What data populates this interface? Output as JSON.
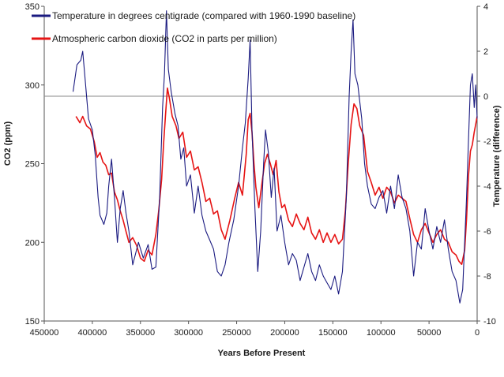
{
  "chart_data": {
    "type": "line",
    "xlabel": "Years Before Present",
    "ylabel_left": "CO2 (ppm)",
    "ylabel_right": "Temperature (difference)",
    "xlim": [
      450000,
      0
    ],
    "ylim_left": [
      150,
      350
    ],
    "ylim_right": [
      -10,
      4
    ],
    "x_ticks": [
      "450000",
      "400000",
      "350000",
      "300000",
      "250000",
      "200000",
      "150000",
      "100000",
      "50000",
      "0"
    ],
    "y_left_ticks": [
      "150",
      "200",
      "250",
      "300",
      "350"
    ],
    "y_right_ticks": [
      "-10",
      "-8",
      "-6",
      "-4",
      "-2",
      "0",
      "2",
      "4"
    ],
    "legend_position": "top-left",
    "grid": false,
    "reference_line_temperature": 0,
    "series": [
      {
        "name": "Temperature in degrees centigrade (compared with 1960-1990 baseline)",
        "axis": "right",
        "color": "#1a1a80",
        "points": [
          [
            420000,
            0.2
          ],
          [
            416000,
            1.4
          ],
          [
            412000,
            1.6
          ],
          [
            410000,
            2.0
          ],
          [
            407000,
            0.5
          ],
          [
            404000,
            -1.0
          ],
          [
            400000,
            -1.5
          ],
          [
            397000,
            -2.6
          ],
          [
            394000,
            -4.5
          ],
          [
            392000,
            -5.3
          ],
          [
            388000,
            -5.7
          ],
          [
            385000,
            -5.2
          ],
          [
            383000,
            -4.0
          ],
          [
            380000,
            -2.8
          ],
          [
            377000,
            -4.5
          ],
          [
            374000,
            -6.5
          ],
          [
            371000,
            -5.0
          ],
          [
            368000,
            -4.2
          ],
          [
            365000,
            -5.2
          ],
          [
            362000,
            -6.0
          ],
          [
            358000,
            -7.5
          ],
          [
            352000,
            -6.5
          ],
          [
            347000,
            -7.2
          ],
          [
            342000,
            -6.6
          ],
          [
            338000,
            -7.7
          ],
          [
            334000,
            -7.6
          ],
          [
            330000,
            -4.5
          ],
          [
            327000,
            -0.5
          ],
          [
            325000,
            1.0
          ],
          [
            323000,
            3.8
          ],
          [
            321000,
            1.2
          ],
          [
            318000,
            0.2
          ],
          [
            314000,
            -0.8
          ],
          [
            311000,
            -1.3
          ],
          [
            308000,
            -2.8
          ],
          [
            305000,
            -2.3
          ],
          [
            302000,
            -4.0
          ],
          [
            298000,
            -3.5
          ],
          [
            294000,
            -5.2
          ],
          [
            290000,
            -4.0
          ],
          [
            286000,
            -5.3
          ],
          [
            282000,
            -6.0
          ],
          [
            278000,
            -6.4
          ],
          [
            274000,
            -6.8
          ],
          [
            270000,
            -7.8
          ],
          [
            266000,
            -8.0
          ],
          [
            262000,
            -7.5
          ],
          [
            258000,
            -6.5
          ],
          [
            253000,
            -5.5
          ],
          [
            248000,
            -4.0
          ],
          [
            244000,
            -2.3
          ],
          [
            241000,
            -1.2
          ],
          [
            238000,
            0.8
          ],
          [
            236000,
            2.5
          ],
          [
            234000,
            -1.5
          ],
          [
            231000,
            -5.0
          ],
          [
            228000,
            -7.8
          ],
          [
            225000,
            -6.0
          ],
          [
            222000,
            -3.0
          ],
          [
            220000,
            -1.5
          ],
          [
            217000,
            -2.5
          ],
          [
            214000,
            -4.5
          ],
          [
            211000,
            -3.2
          ],
          [
            208000,
            -6.0
          ],
          [
            204000,
            -5.3
          ],
          [
            200000,
            -6.5
          ],
          [
            196000,
            -7.5
          ],
          [
            192000,
            -7.0
          ],
          [
            188000,
            -7.3
          ],
          [
            184000,
            -8.2
          ],
          [
            180000,
            -7.6
          ],
          [
            176000,
            -7.0
          ],
          [
            172000,
            -7.8
          ],
          [
            168000,
            -8.2
          ],
          [
            164000,
            -7.5
          ],
          [
            160000,
            -8.0
          ],
          [
            156000,
            -8.3
          ],
          [
            152000,
            -8.6
          ],
          [
            148000,
            -8.0
          ],
          [
            144000,
            -8.8
          ],
          [
            140000,
            -7.8
          ],
          [
            136000,
            -4.5
          ],
          [
            133000,
            0.0
          ],
          [
            131000,
            2.0
          ],
          [
            129000,
            3.4
          ],
          [
            127000,
            1.0
          ],
          [
            124000,
            0.5
          ],
          [
            120000,
            -1.0
          ],
          [
            117000,
            -3.0
          ],
          [
            114000,
            -4.0
          ],
          [
            110000,
            -4.8
          ],
          [
            106000,
            -5.0
          ],
          [
            102000,
            -4.5
          ],
          [
            98000,
            -4.2
          ],
          [
            94000,
            -5.2
          ],
          [
            90000,
            -4.0
          ],
          [
            86000,
            -5.0
          ],
          [
            82000,
            -3.5
          ],
          [
            78000,
            -4.5
          ],
          [
            74000,
            -5.0
          ],
          [
            70000,
            -6.0
          ],
          [
            66000,
            -8.0
          ],
          [
            62000,
            -6.5
          ],
          [
            58000,
            -6.8
          ],
          [
            54000,
            -5.0
          ],
          [
            50000,
            -6.0
          ],
          [
            46000,
            -6.8
          ],
          [
            42000,
            -5.8
          ],
          [
            38000,
            -6.5
          ],
          [
            34000,
            -5.5
          ],
          [
            30000,
            -6.8
          ],
          [
            26000,
            -7.8
          ],
          [
            22000,
            -8.2
          ],
          [
            18000,
            -9.2
          ],
          [
            15000,
            -8.6
          ],
          [
            13000,
            -6.5
          ],
          [
            11000,
            -4.5
          ],
          [
            9000,
            -2.0
          ],
          [
            7000,
            0.5
          ],
          [
            5000,
            1.0
          ],
          [
            3000,
            -0.5
          ],
          [
            1500,
            0.5
          ],
          [
            0,
            -1.0
          ]
        ]
      },
      {
        "name": "Atmospheric carbon dioxide (CO2 in parts per million)",
        "axis": "left",
        "color": "#e61414",
        "points": [
          [
            417000,
            280
          ],
          [
            413000,
            276
          ],
          [
            410000,
            280
          ],
          [
            406000,
            274
          ],
          [
            402000,
            272
          ],
          [
            398000,
            264
          ],
          [
            395000,
            254
          ],
          [
            392000,
            257
          ],
          [
            389000,
            251
          ],
          [
            386000,
            249
          ],
          [
            383000,
            243
          ],
          [
            380000,
            244
          ],
          [
            377000,
            232
          ],
          [
            374000,
            227
          ],
          [
            371000,
            220
          ],
          [
            368000,
            214
          ],
          [
            365000,
            207
          ],
          [
            362000,
            200
          ],
          [
            358000,
            203
          ],
          [
            354000,
            198
          ],
          [
            350000,
            190
          ],
          [
            346000,
            188
          ],
          [
            342000,
            195
          ],
          [
            338000,
            192
          ],
          [
            334000,
            205
          ],
          [
            331000,
            220
          ],
          [
            328000,
            240
          ],
          [
            326000,
            262
          ],
          [
            324000,
            280
          ],
          [
            322000,
            298
          ],
          [
            320000,
            292
          ],
          [
            317000,
            280
          ],
          [
            313000,
            274
          ],
          [
            310000,
            266
          ],
          [
            306000,
            270
          ],
          [
            302000,
            254
          ],
          [
            298000,
            258
          ],
          [
            294000,
            246
          ],
          [
            290000,
            248
          ],
          [
            286000,
            238
          ],
          [
            282000,
            226
          ],
          [
            278000,
            228
          ],
          [
            274000,
            218
          ],
          [
            270000,
            220
          ],
          [
            266000,
            208
          ],
          [
            262000,
            202
          ],
          [
            257000,
            214
          ],
          [
            252000,
            228
          ],
          [
            248000,
            238
          ],
          [
            244000,
            230
          ],
          [
            240000,
            256
          ],
          [
            238000,
            278
          ],
          [
            236000,
            282
          ],
          [
            234000,
            270
          ],
          [
            232000,
            250
          ],
          [
            230000,
            235
          ],
          [
            227000,
            222
          ],
          [
            224000,
            236
          ],
          [
            221000,
            250
          ],
          [
            218000,
            256
          ],
          [
            215000,
            250
          ],
          [
            212000,
            243
          ],
          [
            209000,
            252
          ],
          [
            206000,
            232
          ],
          [
            203000,
            222
          ],
          [
            200000,
            224
          ],
          [
            196000,
            214
          ],
          [
            192000,
            210
          ],
          [
            188000,
            218
          ],
          [
            184000,
            212
          ],
          [
            180000,
            208
          ],
          [
            176000,
            216
          ],
          [
            172000,
            206
          ],
          [
            168000,
            202
          ],
          [
            164000,
            208
          ],
          [
            160000,
            200
          ],
          [
            156000,
            206
          ],
          [
            152000,
            200
          ],
          [
            148000,
            205
          ],
          [
            144000,
            199
          ],
          [
            140000,
            202
          ],
          [
            137000,
            220
          ],
          [
            134000,
            250
          ],
          [
            131000,
            275
          ],
          [
            128000,
            288
          ],
          [
            125000,
            285
          ],
          [
            122000,
            274
          ],
          [
            118000,
            268
          ],
          [
            114000,
            245
          ],
          [
            110000,
            238
          ],
          [
            106000,
            230
          ],
          [
            102000,
            235
          ],
          [
            98000,
            228
          ],
          [
            94000,
            235
          ],
          [
            90000,
            232
          ],
          [
            86000,
            225
          ],
          [
            82000,
            230
          ],
          [
            78000,
            228
          ],
          [
            74000,
            226
          ],
          [
            70000,
            215
          ],
          [
            66000,
            205
          ],
          [
            62000,
            200
          ],
          [
            58000,
            208
          ],
          [
            54000,
            212
          ],
          [
            50000,
            206
          ],
          [
            46000,
            200
          ],
          [
            42000,
            205
          ],
          [
            38000,
            208
          ],
          [
            34000,
            202
          ],
          [
            30000,
            200
          ],
          [
            26000,
            194
          ],
          [
            22000,
            192
          ],
          [
            19000,
            188
          ],
          [
            16000,
            186
          ],
          [
            13000,
            195
          ],
          [
            11000,
            215
          ],
          [
            9000,
            242
          ],
          [
            7000,
            258
          ],
          [
            5000,
            262
          ],
          [
            3000,
            270
          ],
          [
            1500,
            275
          ],
          [
            0,
            280
          ]
        ]
      }
    ]
  }
}
